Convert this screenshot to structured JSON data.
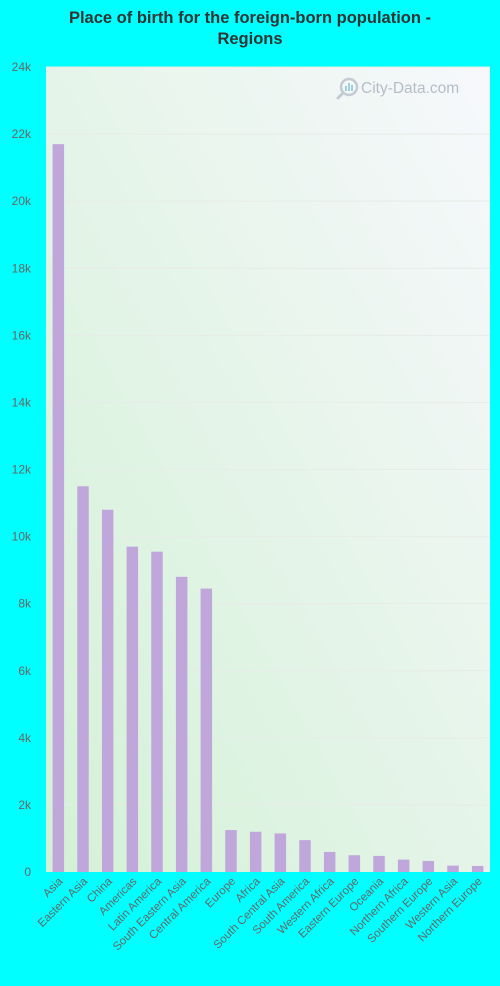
{
  "chart_data": {
    "type": "bar",
    "title": "Place of birth for the foreign-born population - Regions",
    "title_lines": [
      "Place of birth for the foreign-born population -",
      "Regions"
    ],
    "categories": [
      "Asia",
      "Eastern Asia",
      "China",
      "Americas",
      "Latin America",
      "South Eastern Asia",
      "Central America",
      "Europe",
      "Africa",
      "South Central Asia",
      "South America",
      "Western Africa",
      "Eastern Europe",
      "Oceania",
      "Northern Africa",
      "Southern Europe",
      "Western Asia",
      "Northern Europe"
    ],
    "values": [
      21700,
      11500,
      10800,
      9700,
      9550,
      8800,
      8450,
      1250,
      1200,
      1150,
      950,
      600,
      500,
      480,
      370,
      330,
      190,
      180
    ],
    "ylim": [
      0,
      24000
    ],
    "yticks": [
      0,
      2000,
      4000,
      6000,
      8000,
      10000,
      12000,
      14000,
      16000,
      18000,
      20000,
      22000,
      24000
    ],
    "ytick_labels": [
      "0",
      "2k",
      "4k",
      "6k",
      "8k",
      "10k",
      "12k",
      "14k",
      "16k",
      "18k",
      "20k",
      "22k",
      "24k"
    ],
    "xlabel": "",
    "ylabel": "",
    "grid": true,
    "colors": {
      "page_background": "#00ffff",
      "bar": "#bfa7db",
      "plot_gradient_start": "#d3f1d6",
      "plot_gradient_end": "#f7f8fc",
      "gridline": "#e6ece6",
      "tick_text": "#666666"
    }
  },
  "watermark": {
    "text": "City-Data.com",
    "icon": "magnifier-icon"
  }
}
